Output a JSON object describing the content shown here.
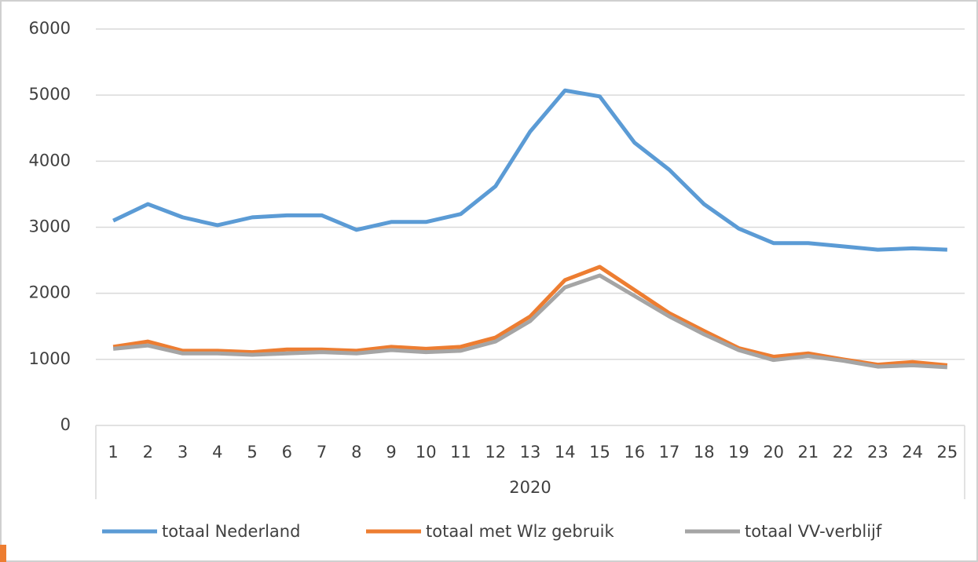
{
  "chart_data": {
    "type": "line",
    "categories": [
      "1",
      "2",
      "3",
      "4",
      "5",
      "6",
      "7",
      "8",
      "9",
      "10",
      "11",
      "12",
      "13",
      "14",
      "15",
      "16",
      "17",
      "18",
      "19",
      "20",
      "21",
      "22",
      "23",
      "24",
      "25"
    ],
    "x_group_label": "2020",
    "series": [
      {
        "name": "totaal Nederland",
        "color": "#5b9bd5",
        "values": [
          3100,
          3350,
          3150,
          3030,
          3150,
          3180,
          3180,
          2960,
          3080,
          3080,
          3200,
          3620,
          4450,
          5070,
          4980,
          4280,
          3870,
          3350,
          2980,
          2760,
          2760,
          2710,
          2660,
          2680,
          2660
        ]
      },
      {
        "name": "totaal met Wlz gebruik",
        "color": "#ed7d31",
        "values": [
          1190,
          1270,
          1130,
          1130,
          1110,
          1150,
          1150,
          1130,
          1190,
          1160,
          1190,
          1330,
          1650,
          2200,
          2400,
          2050,
          1700,
          1430,
          1170,
          1040,
          1090,
          1000,
          920,
          960,
          910
        ]
      },
      {
        "name": "totaal VV-verblijf",
        "color": "#a5a5a5",
        "values": [
          1160,
          1210,
          1090,
          1090,
          1070,
          1090,
          1110,
          1090,
          1140,
          1110,
          1130,
          1270,
          1580,
          2090,
          2270,
          1960,
          1650,
          1380,
          1140,
          990,
          1050,
          980,
          890,
          910,
          880
        ]
      }
    ],
    "ylim": [
      0,
      6000
    ],
    "yticks": [
      0,
      1000,
      2000,
      3000,
      4000,
      5000,
      6000
    ],
    "grid": true,
    "legend": "bottom"
  }
}
